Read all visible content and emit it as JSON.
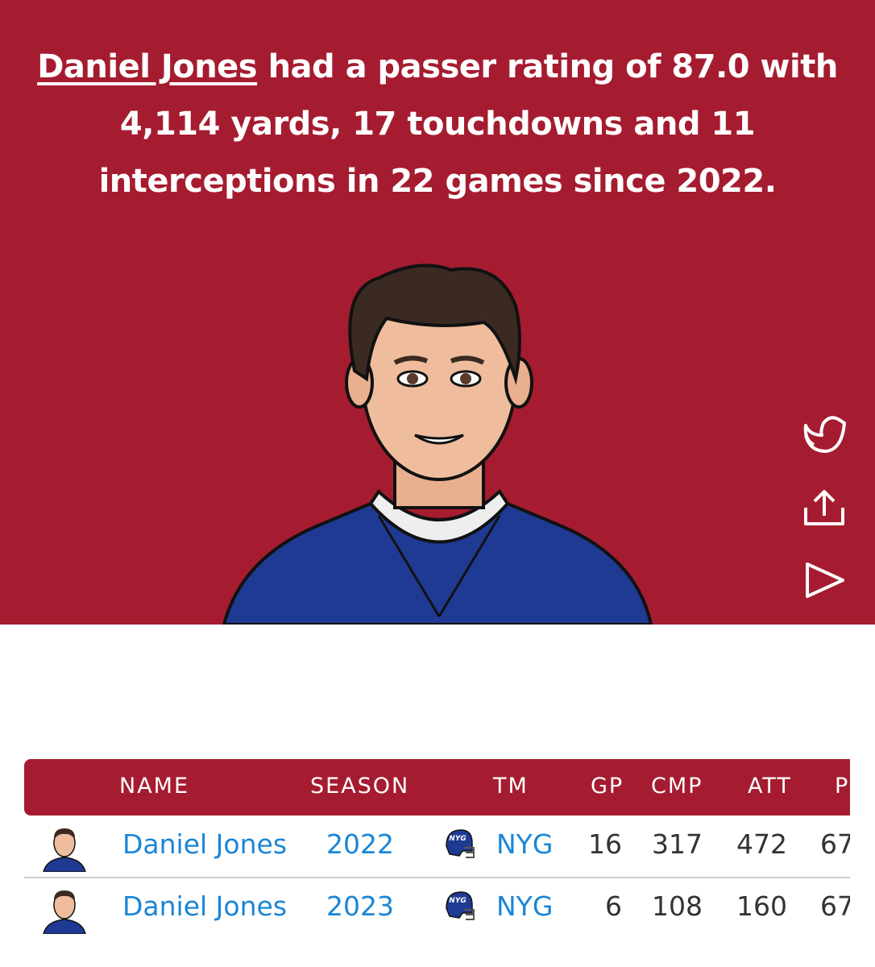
{
  "headline": {
    "link": "Daniel Jones",
    "text": "had a passer rating of 87.0 with 4,114 yards, 17 touchdowns and 11 interceptions in 22 games since 2022."
  },
  "table": {
    "headers": [
      "NAME",
      "SEASON",
      "TM",
      "GP",
      "CMP",
      "ATT",
      "P"
    ],
    "helmet_label": "NYG",
    "rows": [
      [
        "Daniel Jones",
        "2022",
        "NYG",
        "16",
        "317",
        "472",
        "67"
      ],
      [
        "Daniel Jones",
        "2023",
        "NYG",
        "6",
        "108",
        "160",
        "67"
      ]
    ]
  }
}
